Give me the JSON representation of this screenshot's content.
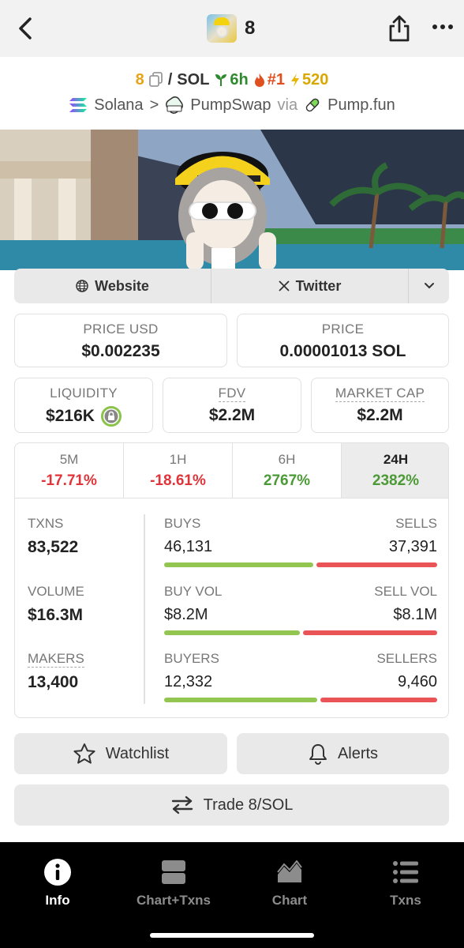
{
  "header": {
    "title": "8"
  },
  "pair": {
    "base": "8",
    "slash": "/",
    "quote": "SOL",
    "age": "6h",
    "rank": "#1",
    "boost": "520"
  },
  "chain": {
    "chain_name": "Solana",
    "separator": ">",
    "dex": "PumpSwap",
    "via": "via",
    "launchpad": "Pump.fun"
  },
  "links": {
    "website": "Website",
    "twitter": "Twitter"
  },
  "prices": {
    "price_usd_label": "PRICE USD",
    "price_usd": "$0.002235",
    "price_label": "PRICE",
    "price_native": "0.00001013 SOL"
  },
  "metrics": {
    "liquidity_label": "LIQUIDITY",
    "liquidity": "$216K",
    "fdv_label": "FDV",
    "fdv": "$2.2M",
    "mcap_label": "MARKET CAP",
    "mcap": "$2.2M"
  },
  "timeframes": [
    {
      "label": "5M",
      "change": "-17.71%"
    },
    {
      "label": "1H",
      "change": "-18.61%"
    },
    {
      "label": "6H",
      "change": "2767%"
    },
    {
      "label": "24H",
      "change": "2382%"
    }
  ],
  "stats": {
    "txns_label": "TXNS",
    "txns": "83,522",
    "volume_label": "VOLUME",
    "volume": "$16.3M",
    "makers_label": "MAKERS",
    "makers": "13,400",
    "buys_label": "BUYS",
    "buys": "46,131",
    "sells_label": "SELLS",
    "sells": "37,391",
    "buy_vol_label": "BUY VOL",
    "buy_vol": "$8.2M",
    "sell_vol_label": "SELL VOL",
    "sell_vol": "$8.1M",
    "buyers_label": "BUYERS",
    "buyers": "12,332",
    "sellers_label": "SELLERS",
    "sellers": "9,460",
    "buy_share_txns": 0.552,
    "buy_share_vol": 0.503,
    "buy_share_makers": 0.566
  },
  "actions": {
    "watchlist": "Watchlist",
    "alerts": "Alerts",
    "trade": "Trade 8/SOL"
  },
  "tabs": {
    "info": "Info",
    "chart_txns": "Chart+Txns",
    "chart": "Chart",
    "txns": "Txns"
  },
  "colors": {
    "accent_base": "#e8a317",
    "positive": "#4b9a36",
    "negative": "#e0343a",
    "buy_bar": "#93c650",
    "sell_bar": "#ea5457"
  }
}
